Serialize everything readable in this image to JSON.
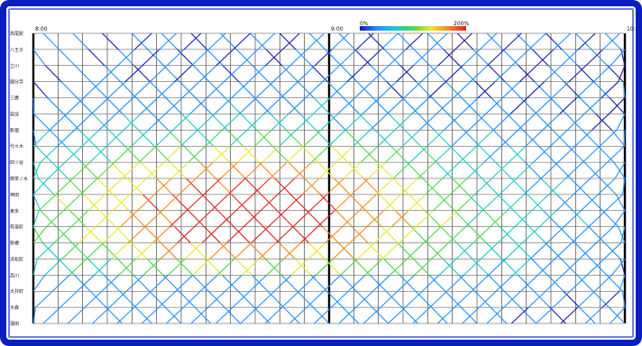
{
  "chart_data": {
    "type": "line",
    "title": "",
    "xlabel": "",
    "ylabel": "",
    "x_tick_labels": [
      "8:00",
      "9:00",
      "10:00"
    ],
    "x_range_hours": [
      8,
      10
    ],
    "stations": [
      "高尾駅",
      "八王子",
      "立川",
      "国分寺",
      "三鷹",
      "荻窪",
      "新宿",
      "代々木",
      "四ツ谷",
      "御茶ノ水",
      "神田",
      "東京",
      "有楽町",
      "新橋",
      "浜松町",
      "品川",
      "大井町",
      "大森",
      "蒲田"
    ],
    "color_scale": {
      "label_low": "0%",
      "label_high": "200%",
      "colors": [
        "#1a1aa8",
        "#1e90ff",
        "#20c8c8",
        "#4cd84c",
        "#e8e830",
        "#f08c1e",
        "#e02020"
      ]
    },
    "series": [
      {
        "direction": "down",
        "departures_min": [
          -40,
          -34,
          -28,
          -22,
          -16,
          -10,
          -4,
          2,
          8,
          14,
          20,
          26,
          32,
          38,
          44,
          50,
          56,
          62,
          68,
          74,
          80,
          86,
          92,
          98,
          104,
          110,
          116,
          122
        ],
        "travel_min": 58
      },
      {
        "direction": "up",
        "departures_min": [
          -38,
          -33,
          -28,
          -23,
          -18,
          -13,
          -8,
          -3,
          2,
          7,
          12,
          17,
          22,
          27,
          32,
          37,
          42,
          47,
          52,
          57,
          62,
          67,
          72,
          77,
          82,
          87,
          92,
          97,
          102,
          107,
          112,
          117
        ],
        "travel_min": 62
      }
    ],
    "grid": true,
    "legend": "top-center"
  }
}
